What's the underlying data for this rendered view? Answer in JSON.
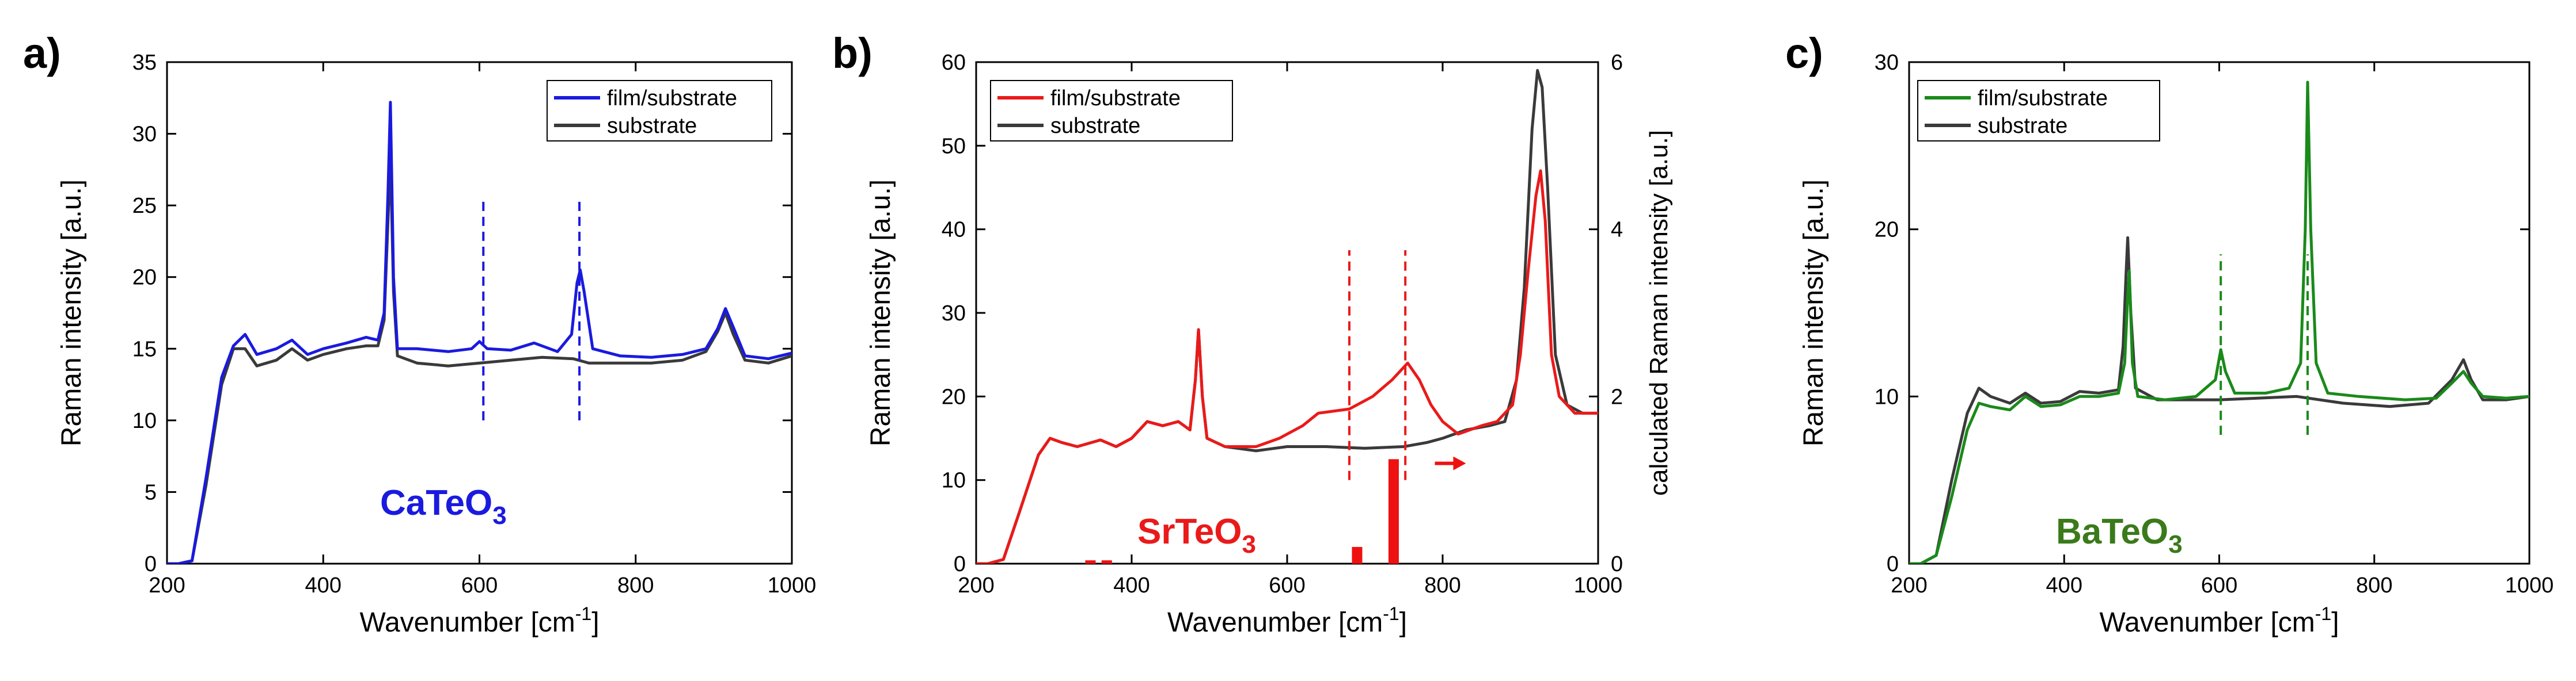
{
  "chart_data": [
    {
      "type": "line",
      "panel_label": "a)",
      "material": {
        "base": "CaTeO",
        "sub": "3"
      },
      "material_color": "#1a1adf",
      "xlabel": "Wavenumber [cm",
      "xlabel_sup": "-1",
      "xlabel_end": "]",
      "ylabel": "Raman intensity [a.u.]",
      "xlim": [
        200,
        1000
      ],
      "ylim": [
        0,
        35
      ],
      "xticks": [
        200,
        400,
        600,
        800,
        1000
      ],
      "yticks": [
        0,
        5,
        10,
        15,
        20,
        25,
        30,
        35
      ],
      "legend": "top-right",
      "series": [
        {
          "name": "film/substrate",
          "color": "#1a1adf",
          "points": [
            [
              200,
              0
            ],
            [
              215,
              0
            ],
            [
              232,
              0.2
            ],
            [
              250,
              6
            ],
            [
              270,
              13
            ],
            [
              285,
              15.2
            ],
            [
              300,
              16
            ],
            [
              315,
              14.6
            ],
            [
              340,
              15
            ],
            [
              360,
              15.6
            ],
            [
              380,
              14.6
            ],
            [
              400,
              15
            ],
            [
              430,
              15.4
            ],
            [
              455,
              15.8
            ],
            [
              470,
              15.6
            ],
            [
              478,
              17.5
            ],
            [
              483,
              26
            ],
            [
              486,
              32.2
            ],
            [
              490,
              20
            ],
            [
              495,
              15
            ],
            [
              520,
              15
            ],
            [
              560,
              14.8
            ],
            [
              590,
              15
            ],
            [
              600,
              15.5
            ],
            [
              610,
              15
            ],
            [
              640,
              14.9
            ],
            [
              670,
              15.4
            ],
            [
              700,
              14.8
            ],
            [
              718,
              16
            ],
            [
              725,
              19.6
            ],
            [
              729,
              20.5
            ],
            [
              734,
              19
            ],
            [
              745,
              15
            ],
            [
              780,
              14.5
            ],
            [
              820,
              14.4
            ],
            [
              860,
              14.6
            ],
            [
              890,
              15
            ],
            [
              905,
              16.4
            ],
            [
              915,
              17.8
            ],
            [
              925,
              16.5
            ],
            [
              940,
              14.5
            ],
            [
              970,
              14.3
            ],
            [
              1000,
              14.7
            ]
          ]
        },
        {
          "name": "substrate",
          "color": "#3a3a3a",
          "points": [
            [
              200,
              0
            ],
            [
              215,
              0
            ],
            [
              232,
              0.2
            ],
            [
              250,
              5.5
            ],
            [
              270,
              12.5
            ],
            [
              285,
              15
            ],
            [
              300,
              15
            ],
            [
              315,
              13.8
            ],
            [
              340,
              14.2
            ],
            [
              360,
              15
            ],
            [
              380,
              14.2
            ],
            [
              400,
              14.6
            ],
            [
              430,
              15
            ],
            [
              455,
              15.2
            ],
            [
              470,
              15.2
            ],
            [
              478,
              17
            ],
            [
              483,
              24
            ],
            [
              486,
              28.5
            ],
            [
              490,
              19
            ],
            [
              495,
              14.5
            ],
            [
              520,
              14
            ],
            [
              560,
              13.8
            ],
            [
              600,
              14
            ],
            [
              640,
              14.2
            ],
            [
              680,
              14.4
            ],
            [
              720,
              14.3
            ],
            [
              740,
              14
            ],
            [
              780,
              14
            ],
            [
              820,
              14
            ],
            [
              860,
              14.2
            ],
            [
              890,
              14.8
            ],
            [
              905,
              16.2
            ],
            [
              915,
              17.5
            ],
            [
              925,
              16
            ],
            [
              940,
              14.2
            ],
            [
              970,
              14
            ],
            [
              1000,
              14.5
            ]
          ]
        }
      ],
      "markers": [
        {
          "x": 605,
          "y_from": 10,
          "y_to": 25.5
        },
        {
          "x": 728,
          "y_from": 10,
          "y_to": 25.5
        }
      ],
      "bars": []
    },
    {
      "type": "line",
      "panel_label": "b)",
      "material": {
        "base": "SrTeO",
        "sub": "3"
      },
      "material_color": "#ea1a1a",
      "xlabel": "Wavenumber [cm",
      "xlabel_sup": "-1",
      "xlabel_end": "]",
      "ylabel": "Raman intensity [a.u.]",
      "ylabel_right": "calculated Raman intensity [a.u.]",
      "xlim": [
        200,
        1000
      ],
      "ylim": [
        0,
        60
      ],
      "y2lim": [
        0,
        6
      ],
      "xticks": [
        200,
        400,
        600,
        800,
        1000
      ],
      "yticks": [
        0,
        10,
        20,
        30,
        40,
        50,
        60
      ],
      "y2ticks": [
        0,
        2,
        4,
        6
      ],
      "legend": "top-left",
      "series": [
        {
          "name": "film/substrate",
          "color": "#ea1a1a",
          "points": [
            [
              200,
              0
            ],
            [
              215,
              0
            ],
            [
              235,
              0.5
            ],
            [
              255,
              6
            ],
            [
              280,
              13
            ],
            [
              295,
              15
            ],
            [
              310,
              14.5
            ],
            [
              330,
              14
            ],
            [
              360,
              14.8
            ],
            [
              380,
              14
            ],
            [
              400,
              15
            ],
            [
              420,
              17
            ],
            [
              440,
              16.5
            ],
            [
              460,
              17
            ],
            [
              475,
              16
            ],
            [
              482,
              22
            ],
            [
              486,
              28
            ],
            [
              491,
              20
            ],
            [
              497,
              15
            ],
            [
              520,
              14
            ],
            [
              560,
              14
            ],
            [
              590,
              15
            ],
            [
              620,
              16.5
            ],
            [
              640,
              18
            ],
            [
              680,
              18.5
            ],
            [
              710,
              20
            ],
            [
              735,
              22
            ],
            [
              755,
              24
            ],
            [
              770,
              22
            ],
            [
              785,
              19
            ],
            [
              800,
              17
            ],
            [
              820,
              15.5
            ],
            [
              850,
              16.5
            ],
            [
              870,
              17
            ],
            [
              890,
              19
            ],
            [
              900,
              25
            ],
            [
              910,
              35
            ],
            [
              920,
              44
            ],
            [
              926,
              47
            ],
            [
              932,
              41
            ],
            [
              940,
              25
            ],
            [
              950,
              20
            ],
            [
              970,
              18
            ],
            [
              1000,
              18
            ]
          ]
        },
        {
          "name": "substrate",
          "color": "#3a3a3a",
          "points": [
            [
              200,
              0
            ],
            [
              215,
              0
            ],
            [
              235,
              0.5
            ],
            [
              255,
              6
            ],
            [
              280,
              13
            ],
            [
              295,
              15
            ],
            [
              310,
              14.5
            ],
            [
              330,
              14
            ],
            [
              360,
              14.8
            ],
            [
              380,
              14
            ],
            [
              400,
              15
            ],
            [
              420,
              17
            ],
            [
              440,
              16.5
            ],
            [
              460,
              17
            ],
            [
              475,
              16
            ],
            [
              482,
              22
            ],
            [
              486,
              28
            ],
            [
              491,
              20
            ],
            [
              497,
              15
            ],
            [
              520,
              14
            ],
            [
              560,
              13.5
            ],
            [
              600,
              14
            ],
            [
              650,
              14
            ],
            [
              700,
              13.8
            ],
            [
              750,
              14
            ],
            [
              780,
              14.5
            ],
            [
              800,
              15
            ],
            [
              830,
              16
            ],
            [
              860,
              16.5
            ],
            [
              880,
              17
            ],
            [
              895,
              22
            ],
            [
              905,
              33
            ],
            [
              915,
              52
            ],
            [
              922,
              59
            ],
            [
              928,
              57
            ],
            [
              935,
              45
            ],
            [
              945,
              25
            ],
            [
              960,
              19
            ],
            [
              980,
              18
            ],
            [
              1000,
              18
            ]
          ]
        }
      ],
      "markers": [
        {
          "x": 680,
          "y_from": 10,
          "y_to": 37.5
        },
        {
          "x": 752,
          "y_from": 10,
          "y_to": 37.5
        }
      ],
      "bars": [
        {
          "x": 347,
          "value": 0.04
        },
        {
          "x": 368,
          "value": 0.04
        },
        {
          "x": 690,
          "value": 0.2
        },
        {
          "x": 737,
          "value": 1.25
        }
      ],
      "arrow": {
        "x_from": 790,
        "x_to": 830,
        "y": 1.2,
        "y_axis": "right"
      }
    },
    {
      "type": "line",
      "panel_label": "c)",
      "material": {
        "base": "BaTeO",
        "sub": "3"
      },
      "material_color": "#3a7a1a",
      "xlabel": "Wavenumber [cm",
      "xlabel_sup": "-1",
      "xlabel_end": "]",
      "ylabel": "Raman intensity [a.u.]",
      "xlim": [
        200,
        1000
      ],
      "ylim": [
        0,
        30
      ],
      "xticks": [
        200,
        400,
        600,
        800,
        1000
      ],
      "yticks": [
        0,
        10,
        20,
        30
      ],
      "legend": "top-left",
      "series": [
        {
          "name": "film/substrate",
          "color": "#1a8a1a",
          "points": [
            [
              200,
              0
            ],
            [
              215,
              0
            ],
            [
              235,
              0.5
            ],
            [
              255,
              4
            ],
            [
              275,
              8
            ],
            [
              290,
              9.6
            ],
            [
              305,
              9.4
            ],
            [
              330,
              9.2
            ],
            [
              350,
              10
            ],
            [
              370,
              9.4
            ],
            [
              395,
              9.5
            ],
            [
              420,
              10
            ],
            [
              445,
              10
            ],
            [
              470,
              10.2
            ],
            [
              478,
              12
            ],
            [
              482,
              16
            ],
            [
              484,
              17.5
            ],
            [
              488,
              12
            ],
            [
              495,
              10
            ],
            [
              530,
              9.8
            ],
            [
              570,
              10
            ],
            [
              595,
              11
            ],
            [
              602,
              12.8
            ],
            [
              608,
              11.5
            ],
            [
              620,
              10.2
            ],
            [
              660,
              10.2
            ],
            [
              690,
              10.5
            ],
            [
              705,
              12
            ],
            [
              711,
              20
            ],
            [
              714,
              28.8
            ],
            [
              718,
              20
            ],
            [
              725,
              12
            ],
            [
              740,
              10.2
            ],
            [
              780,
              10
            ],
            [
              840,
              9.8
            ],
            [
              880,
              9.9
            ],
            [
              900,
              10.8
            ],
            [
              915,
              11.5
            ],
            [
              925,
              10.8
            ],
            [
              940,
              10
            ],
            [
              970,
              9.9
            ],
            [
              1000,
              10
            ]
          ]
        },
        {
          "name": "substrate",
          "color": "#3a3a3a",
          "points": [
            [
              200,
              0
            ],
            [
              215,
              0
            ],
            [
              235,
              0.5
            ],
            [
              255,
              5
            ],
            [
              275,
              9
            ],
            [
              290,
              10.5
            ],
            [
              305,
              10
            ],
            [
              330,
              9.6
            ],
            [
              350,
              10.2
            ],
            [
              370,
              9.6
            ],
            [
              395,
              9.7
            ],
            [
              420,
              10.3
            ],
            [
              445,
              10.2
            ],
            [
              470,
              10.4
            ],
            [
              476,
              13
            ],
            [
              480,
              17.5
            ],
            [
              482,
              19.5
            ],
            [
              486,
              15
            ],
            [
              492,
              10.5
            ],
            [
              520,
              9.8
            ],
            [
              600,
              9.8
            ],
            [
              700,
              10
            ],
            [
              760,
              9.6
            ],
            [
              820,
              9.4
            ],
            [
              870,
              9.6
            ],
            [
              900,
              11
            ],
            [
              915,
              12.2
            ],
            [
              925,
              11
            ],
            [
              940,
              9.8
            ],
            [
              970,
              9.8
            ],
            [
              1000,
              10
            ]
          ]
        }
      ],
      "markers": [
        {
          "x": 602,
          "y_from": 7.7,
          "y_to": 18.5
        },
        {
          "x": 714,
          "y_from": 7.7,
          "y_to": 18.5
        }
      ],
      "bars": []
    }
  ]
}
